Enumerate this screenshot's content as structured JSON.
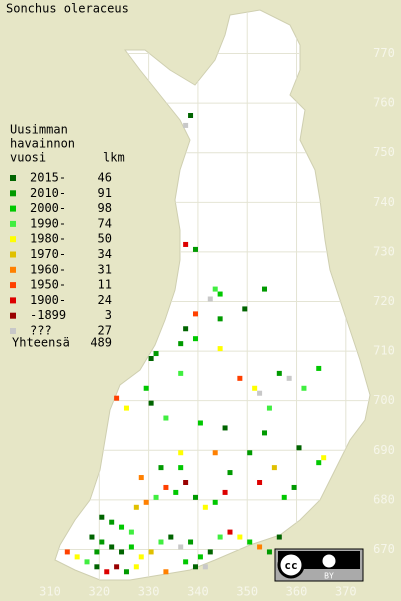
{
  "chart_data": {
    "type": "grid-map",
    "title": "Sonchus oleraceus",
    "xlim": [
      306,
      376
    ],
    "ylim": [
      661,
      779
    ],
    "xticks": [
      310,
      320,
      330,
      340,
      350,
      360,
      370
    ],
    "yticks": [
      670,
      680,
      690,
      700,
      710,
      720,
      730,
      740,
      750,
      760,
      770
    ],
    "legend": {
      "header": [
        "Uusimman",
        "havainnon",
        "vuosi"
      ],
      "count_header": "lkm",
      "total_label": "Yhteensä",
      "total": 489,
      "entries": [
        {
          "label": "2015-",
          "count": 46,
          "color": "#006400"
        },
        {
          "label": "2010-",
          "count": 91,
          "color": "#009a00"
        },
        {
          "label": "2000-",
          "count": 98,
          "color": "#00c800"
        },
        {
          "label": "1990-",
          "count": 74,
          "color": "#40ee40"
        },
        {
          "label": "1980-",
          "count": 50,
          "color": "#ffff00"
        },
        {
          "label": "1970-",
          "count": 34,
          "color": "#e0c000"
        },
        {
          "label": "1960-",
          "count": 31,
          "color": "#ff8000"
        },
        {
          "label": "1950-",
          "count": 11,
          "color": "#ff4000"
        },
        {
          "label": "1900-",
          "count": 24,
          "color": "#dd0000"
        },
        {
          "label": "-1899",
          "count": 3,
          "color": "#990000"
        },
        {
          "label": "???",
          "count": 27,
          "color": "#c8c8c8"
        }
      ]
    },
    "points": [
      [
        337,
        755,
        10
      ],
      [
        338,
        757,
        0
      ],
      [
        337,
        731,
        8
      ],
      [
        339,
        730,
        1
      ],
      [
        343,
        722,
        3
      ],
      [
        342,
        720,
        10
      ],
      [
        344,
        721,
        2
      ],
      [
        339,
        717,
        7
      ],
      [
        344,
        716,
        1
      ],
      [
        349,
        718,
        0
      ],
      [
        353,
        722,
        1
      ],
      [
        337,
        714,
        0
      ],
      [
        336,
        711,
        1
      ],
      [
        339,
        712,
        2
      ],
      [
        330,
        708,
        0
      ],
      [
        331,
        709,
        1
      ],
      [
        336,
        705,
        3
      ],
      [
        344,
        710,
        4
      ],
      [
        348,
        704,
        7
      ],
      [
        351,
        702,
        4
      ],
      [
        356,
        705,
        1
      ],
      [
        358,
        704,
        10
      ],
      [
        361,
        702,
        3
      ],
      [
        364,
        706,
        2
      ],
      [
        352,
        701,
        10
      ],
      [
        354,
        698,
        3
      ],
      [
        353,
        693,
        1
      ],
      [
        330,
        699,
        0
      ],
      [
        325,
        698,
        4
      ],
      [
        323,
        700,
        7
      ],
      [
        329,
        702,
        2
      ],
      [
        333,
        696,
        3
      ],
      [
        340,
        695,
        2
      ],
      [
        345,
        694,
        0
      ],
      [
        336,
        689,
        4
      ],
      [
        343,
        689,
        6
      ],
      [
        350,
        689,
        1
      ],
      [
        355,
        686,
        5
      ],
      [
        360,
        690,
        0
      ],
      [
        364,
        687,
        2
      ],
      [
        365,
        688,
        4
      ],
      [
        359,
        682,
        1
      ],
      [
        357,
        680,
        2
      ],
      [
        352,
        683,
        8
      ],
      [
        346,
        685,
        1
      ],
      [
        320,
        676,
        0
      ],
      [
        322,
        675,
        1
      ],
      [
        324,
        674,
        2
      ],
      [
        326,
        673,
        3
      ],
      [
        318,
        672,
        0
      ],
      [
        320,
        671,
        1
      ],
      [
        322,
        670,
        0
      ],
      [
        324,
        669,
        0
      ],
      [
        326,
        670,
        2
      ],
      [
        328,
        668,
        4
      ],
      [
        330,
        669,
        5
      ],
      [
        332,
        671,
        3
      ],
      [
        334,
        672,
        0
      ],
      [
        336,
        670,
        10
      ],
      [
        338,
        671,
        1
      ],
      [
        340,
        668,
        2
      ],
      [
        342,
        669,
        0
      ],
      [
        344,
        672,
        3
      ],
      [
        346,
        673,
        8
      ],
      [
        348,
        672,
        4
      ],
      [
        350,
        671,
        2
      ],
      [
        352,
        670,
        6
      ],
      [
        354,
        669,
        1
      ],
      [
        356,
        672,
        0
      ],
      [
        327,
        678,
        5
      ],
      [
        329,
        679,
        6
      ],
      [
        331,
        680,
        3
      ],
      [
        333,
        682,
        7
      ],
      [
        335,
        681,
        2
      ],
      [
        337,
        683,
        9
      ],
      [
        339,
        680,
        1
      ],
      [
        341,
        678,
        4
      ],
      [
        343,
        679,
        2
      ],
      [
        345,
        681,
        8
      ],
      [
        328,
        684,
        6
      ],
      [
        332,
        686,
        1
      ],
      [
        336,
        686,
        2
      ],
      [
        317,
        667,
        3
      ],
      [
        319,
        666,
        0
      ],
      [
        321,
        665,
        8
      ],
      [
        323,
        666,
        9
      ],
      [
        325,
        665,
        1
      ],
      [
        327,
        666,
        4
      ],
      [
        319,
        669,
        1
      ],
      [
        315,
        668,
        4
      ],
      [
        313,
        669,
        7
      ],
      [
        333,
        665,
        6
      ],
      [
        337,
        667,
        2
      ],
      [
        339,
        666,
        0
      ],
      [
        341,
        666,
        10
      ]
    ],
    "license": {
      "cc": "cc",
      "by": "BY"
    }
  }
}
